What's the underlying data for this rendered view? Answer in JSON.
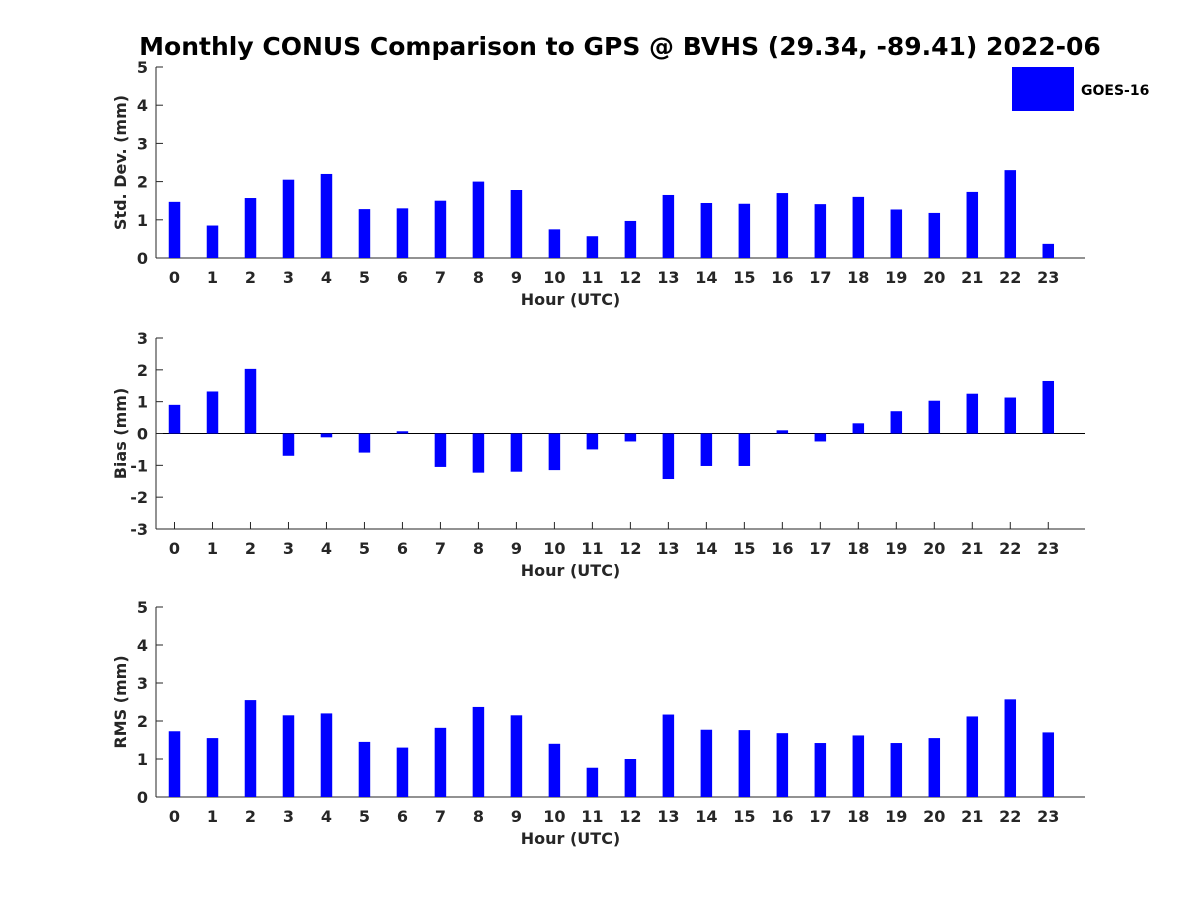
{
  "title": "Monthly CONUS Comparison to GPS @ BVHS (29.34, -89.41) 2022-06",
  "legend": {
    "label": "GOES-16",
    "color": "#0000ff",
    "position": "top-right"
  },
  "chart_data": [
    {
      "type": "bar",
      "xlabel": "Hour (UTC)",
      "ylabel": "Std. Dev. (mm)",
      "ylim": [
        0,
        5
      ],
      "yticks": [
        "0",
        "1",
        "2",
        "3",
        "4",
        "5"
      ],
      "categories": [
        "0",
        "1",
        "2",
        "3",
        "4",
        "5",
        "6",
        "7",
        "8",
        "9",
        "10",
        "11",
        "12",
        "13",
        "14",
        "15",
        "16",
        "17",
        "18",
        "19",
        "20",
        "21",
        "22",
        "23"
      ],
      "series": [
        {
          "name": "GOES-16",
          "values": [
            1.47,
            0.85,
            1.57,
            2.05,
            2.2,
            1.28,
            1.3,
            1.5,
            2.0,
            1.78,
            0.75,
            0.57,
            0.97,
            1.65,
            1.44,
            1.42,
            1.7,
            1.41,
            1.6,
            1.27,
            1.18,
            1.73,
            2.3,
            0.37
          ]
        }
      ]
    },
    {
      "type": "bar",
      "xlabel": "Hour (UTC)",
      "ylabel": "Bias (mm)",
      "ylim": [
        -3,
        3
      ],
      "yticks": [
        "-3",
        "-2",
        "-1",
        "0",
        "1",
        "2",
        "3"
      ],
      "categories": [
        "0",
        "1",
        "2",
        "3",
        "4",
        "5",
        "6",
        "7",
        "8",
        "9",
        "10",
        "11",
        "12",
        "13",
        "14",
        "15",
        "16",
        "17",
        "18",
        "19",
        "20",
        "21",
        "22",
        "23"
      ],
      "series": [
        {
          "name": "GOES-16",
          "values": [
            0.9,
            1.32,
            2.03,
            -0.7,
            -0.12,
            -0.6,
            0.07,
            -1.05,
            -1.23,
            -1.2,
            -1.15,
            -0.5,
            -0.25,
            -1.43,
            -1.02,
            -1.02,
            0.1,
            -0.25,
            0.32,
            0.7,
            1.03,
            1.25,
            1.13,
            1.65
          ]
        }
      ]
    },
    {
      "type": "bar",
      "xlabel": "Hour (UTC)",
      "ylabel": "RMS (mm)",
      "ylim": [
        0,
        5
      ],
      "yticks": [
        "0",
        "1",
        "2",
        "3",
        "4",
        "5"
      ],
      "categories": [
        "0",
        "1",
        "2",
        "3",
        "4",
        "5",
        "6",
        "7",
        "8",
        "9",
        "10",
        "11",
        "12",
        "13",
        "14",
        "15",
        "16",
        "17",
        "18",
        "19",
        "20",
        "21",
        "22",
        "23"
      ],
      "series": [
        {
          "name": "GOES-16",
          "values": [
            1.73,
            1.55,
            2.55,
            2.15,
            2.2,
            1.45,
            1.3,
            1.82,
            2.37,
            2.15,
            1.4,
            0.77,
            1.0,
            2.17,
            1.77,
            1.76,
            1.68,
            1.42,
            1.62,
            1.42,
            1.55,
            2.12,
            2.57,
            1.7
          ]
        }
      ]
    }
  ]
}
